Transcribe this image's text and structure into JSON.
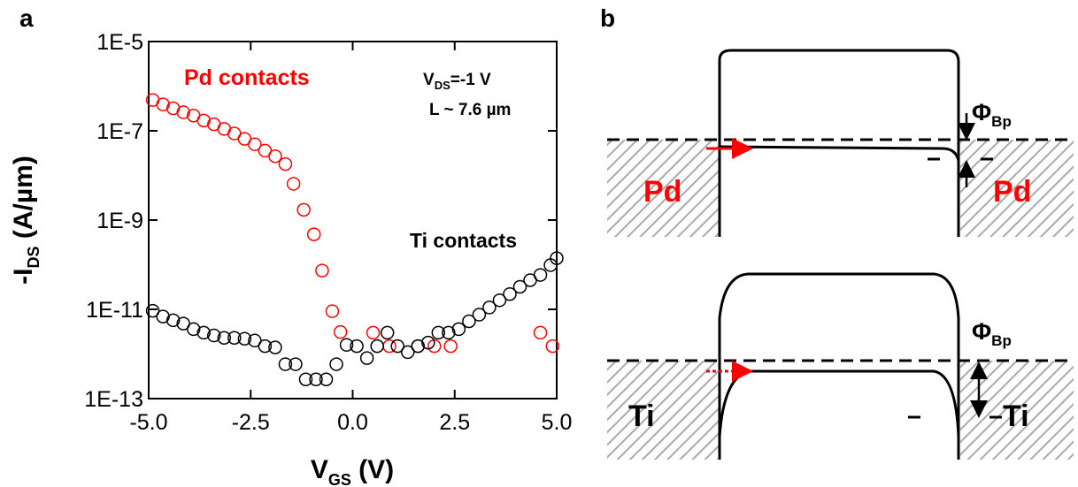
{
  "panel_labels": [
    "a",
    "b"
  ],
  "chart_data": {
    "type": "scatter",
    "log_y": true,
    "x_label": [
      "V",
      "GS",
      " (V)"
    ],
    "y_label": [
      "-I",
      "DS",
      " (A/µm)"
    ],
    "annotations": [
      [
        "V",
        "DS",
        "=-1 V"
      ],
      [
        "L ~ 7.6 µm"
      ]
    ],
    "xlim": [
      -5,
      5
    ],
    "ylim": [
      1e-13,
      1e-05
    ],
    "xticks": [
      {
        "value": -5,
        "label": "-5.0"
      },
      {
        "value": -2.5,
        "label": "-2.5"
      },
      {
        "value": 0,
        "label": "0.0"
      },
      {
        "value": 2.5,
        "label": "2.5"
      },
      {
        "value": 5,
        "label": "5.0"
      }
    ],
    "yticks": [
      {
        "value": 1e-13,
        "label": "1E-13"
      },
      {
        "value": 1e-11,
        "label": "1E-11"
      },
      {
        "value": 1e-09,
        "label": "1E-9"
      },
      {
        "value": 1e-07,
        "label": "1E-7"
      },
      {
        "value": 1e-05,
        "label": "1E-5"
      }
    ],
    "series": [
      {
        "name": "Pd contacts",
        "color": "#ff0000",
        "x": [
          -4.9,
          -4.65,
          -4.4,
          -4.15,
          -3.9,
          -3.65,
          -3.4,
          -3.15,
          -2.9,
          -2.65,
          -2.4,
          -2.15,
          -1.9,
          -1.65,
          -1.45,
          -1.2,
          -0.95,
          -0.75,
          -0.5,
          -0.3,
          0.5,
          0.9,
          1.6,
          2.0,
          2.4,
          4.6,
          4.9
        ],
        "values": [
          4.9e-07,
          3.9e-07,
          3.2e-07,
          2.6e-07,
          2.2e-07,
          1.7e-07,
          1.4e-07,
          1.1e-07,
          8.7e-08,
          6.6e-08,
          5e-08,
          3.6e-08,
          2.7e-08,
          1.8e-08,
          6.5e-09,
          1.7e-09,
          4.8e-10,
          7.4e-11,
          9.1e-12,
          3.1e-12,
          3e-12,
          1.5e-12,
          1.5e-12,
          1.5e-12,
          1.5e-12,
          3e-12,
          1.5e-12
        ]
      },
      {
        "name": "Ti contacts",
        "color": "#000000",
        "x": [
          -4.9,
          -4.65,
          -4.4,
          -4.15,
          -3.9,
          -3.65,
          -3.4,
          -3.15,
          -2.9,
          -2.65,
          -2.4,
          -2.15,
          -1.9,
          -1.65,
          -1.4,
          -1.15,
          -0.9,
          -0.65,
          -0.4,
          -0.15,
          0.1,
          0.35,
          0.6,
          0.85,
          1.1,
          1.35,
          1.6,
          1.85,
          2.1,
          2.35,
          2.6,
          2.85,
          3.1,
          3.35,
          3.6,
          3.85,
          4.1,
          4.35,
          4.6,
          4.85,
          5.0
        ],
        "values": [
          9.3e-12,
          6.9e-12,
          5.7e-12,
          4.8e-12,
          3.6e-12,
          3e-12,
          2.6e-12,
          2.3e-12,
          2.3e-12,
          2.2e-12,
          2e-12,
          1.5e-12,
          1.4e-12,
          5.9e-13,
          5.9e-13,
          2.7e-13,
          2.7e-13,
          2.7e-13,
          5.9e-13,
          1.6e-12,
          1.5e-12,
          8.1e-13,
          1.5e-12,
          3e-12,
          1.5e-12,
          1.1e-12,
          1.5e-12,
          1.8e-12,
          3e-12,
          3e-12,
          3.6e-12,
          5.4e-12,
          7.6e-12,
          1.1e-11,
          1.6e-11,
          2.2e-11,
          3.2e-11,
          4.5e-11,
          5.9e-11,
          9.8e-11,
          1.4e-10
        ]
      }
    ]
  },
  "diagram": {
    "top": {
      "metal_left": "Pd",
      "metal_right": "Pd",
      "barrier": [
        "Φ",
        "Bp"
      ]
    },
    "bottom": {
      "metal_left": "Ti",
      "metal_right": "Ti",
      "barrier": [
        "Φ",
        "Bp"
      ]
    }
  }
}
